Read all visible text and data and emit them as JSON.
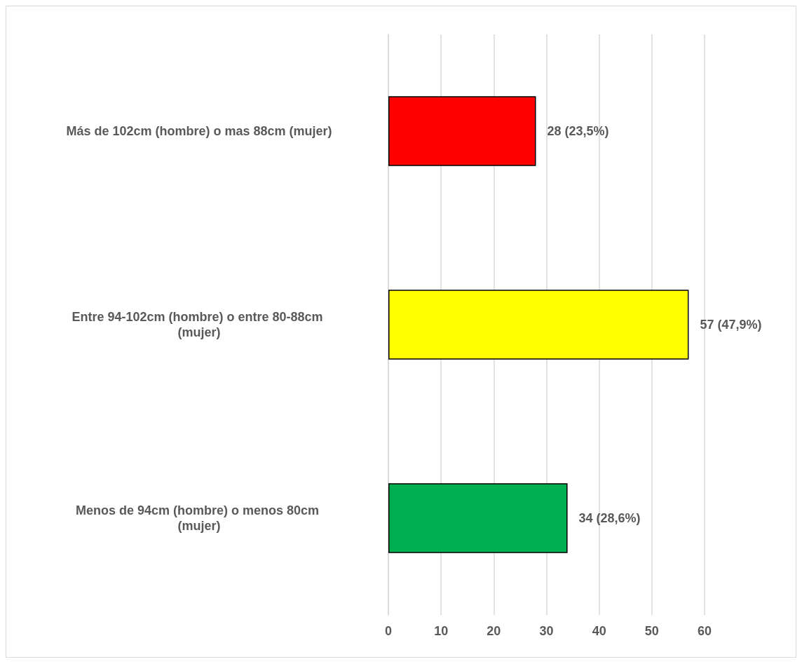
{
  "chart_data": {
    "type": "bar",
    "orientation": "horizontal",
    "categories": [
      "Más de 102cm (hombre) o mas 88cm (mujer)",
      "Entre 94-102cm (hombre) o entre 80-88cm (mujer)",
      "Menos de 94cm (hombre) o menos 80cm (mujer)"
    ],
    "values": [
      28,
      57,
      34
    ],
    "colors": [
      "#ff0000",
      "#ffff00",
      "#00b050"
    ],
    "value_labels": [
      "28 (23,5%)",
      "57 (47,9%)",
      "34 (28,6%)"
    ],
    "xlim": [
      0,
      60
    ],
    "xticks": [
      0,
      10,
      20,
      30,
      40,
      50,
      60
    ],
    "grid": "x"
  }
}
